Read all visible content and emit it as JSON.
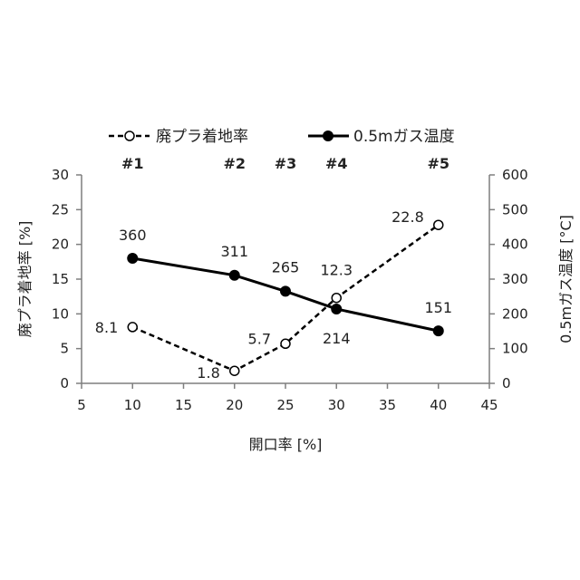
{
  "chart_data": {
    "type": "line",
    "xlabel": "開口率 [%]",
    "ylabel_left": "廃プラ着地率 [%]",
    "ylabel_right": "0.5mガス温度 [°C]",
    "xlim": [
      5,
      45
    ],
    "ylim_left": [
      0,
      30
    ],
    "ylim_right": [
      0,
      600
    ],
    "x_ticks": [
      5,
      10,
      15,
      20,
      25,
      30,
      35,
      40,
      45
    ],
    "y_ticks_left": [
      0,
      5,
      10,
      15,
      20,
      25,
      30
    ],
    "y_ticks_right": [
      0,
      100,
      200,
      300,
      400,
      500,
      600
    ],
    "grid": false,
    "legend_position": "top-center",
    "case_labels": [
      {
        "x": 10,
        "text": "#1"
      },
      {
        "x": 20,
        "text": "#2"
      },
      {
        "x": 25,
        "text": "#3"
      },
      {
        "x": 30,
        "text": "#4"
      },
      {
        "x": 40,
        "text": "#5"
      }
    ],
    "series": [
      {
        "name": "廃プラ着地率",
        "axis": "left",
        "style": "dashed",
        "marker": "open-circle",
        "x": [
          10,
          20,
          25,
          30,
          40
        ],
        "values": [
          8.1,
          1.8,
          5.7,
          12.3,
          22.8
        ],
        "labels": [
          "8.1",
          "1.8",
          "5.7",
          "12.3",
          "22.8"
        ]
      },
      {
        "name": "0.5mガス温度",
        "axis": "right",
        "style": "solid",
        "marker": "filled-circle",
        "x": [
          10,
          20,
          25,
          30,
          40
        ],
        "values": [
          360,
          311,
          265,
          214,
          151
        ],
        "labels": [
          "360",
          "311",
          "265",
          "214",
          "151"
        ]
      }
    ]
  },
  "colors": {
    "line": "#000000",
    "axis": "#7f7f7f",
    "text": "#222222"
  }
}
